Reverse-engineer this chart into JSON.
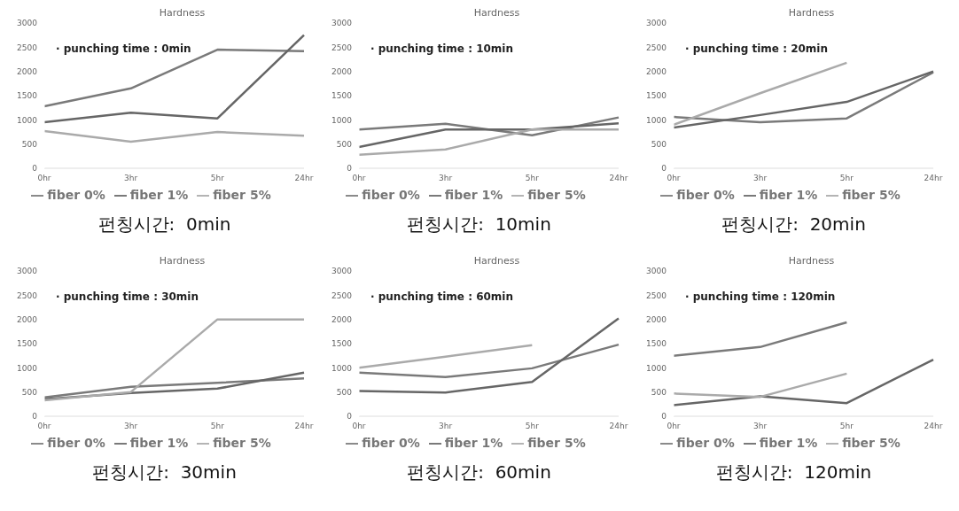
{
  "chart_data": [
    {
      "type": "line",
      "title": "Hardness",
      "categories": [
        "0hr",
        "3hr",
        "5hr",
        "24hr"
      ],
      "ylim": [
        0,
        3000
      ],
      "yticks": [
        0,
        500,
        1000,
        1500,
        2000,
        2500,
        3000
      ],
      "grid": false,
      "legend": "bottom",
      "marker": "none",
      "annotations": [
        "· punching time : 0min",
        "펀칭시간:  0min"
      ],
      "series": [
        {
          "name": "fiber 0%",
          "color": "#7a7a7a",
          "values": [
            1280,
            1650,
            2450,
            2420
          ]
        },
        {
          "name": "fiber 1%",
          "color": "#666666",
          "values": [
            950,
            1150,
            1030,
            2750
          ]
        },
        {
          "name": "fiber 5%",
          "color": "#aaaaaa",
          "values": [
            770,
            550,
            750,
            670
          ]
        }
      ]
    },
    {
      "type": "line",
      "title": "Hardness",
      "categories": [
        "0hr",
        "3hr",
        "5hr",
        "24hr"
      ],
      "ylim": [
        0,
        3000
      ],
      "yticks": [
        0,
        500,
        1000,
        1500,
        2000,
        2500,
        3000
      ],
      "grid": false,
      "legend": "bottom",
      "marker": "none",
      "annotations": [
        "· punching time : 10min",
        "펀칭시간:  10min"
      ],
      "series": [
        {
          "name": "fiber 0%",
          "color": "#7a7a7a",
          "values": [
            800,
            920,
            680,
            1050
          ]
        },
        {
          "name": "fiber 1%",
          "color": "#666666",
          "values": [
            440,
            800,
            800,
            930
          ]
        },
        {
          "name": "fiber 5%",
          "color": "#aaaaaa",
          "values": [
            280,
            390,
            800,
            800
          ]
        }
      ]
    },
    {
      "type": "line",
      "title": "Hardness",
      "categories": [
        "0hr",
        "3hr",
        "5hr",
        "24hr"
      ],
      "ylim": [
        0,
        3000
      ],
      "yticks": [
        0,
        500,
        1000,
        1500,
        2000,
        2500,
        3000
      ],
      "grid": false,
      "legend": "bottom",
      "marker": "none",
      "annotations": [
        "· punching time : 20min",
        "펀칭시간:  20min"
      ],
      "series": [
        {
          "name": "fiber 0%",
          "color": "#7a7a7a",
          "values": [
            1060,
            950,
            1030,
            1980
          ]
        },
        {
          "name": "fiber 1%",
          "color": "#666666",
          "values": [
            840,
            1100,
            1370,
            2000
          ]
        },
        {
          "name": "fiber 5%",
          "color": "#aaaaaa",
          "values": [
            900,
            1550,
            2180,
            null
          ]
        }
      ]
    },
    {
      "type": "line",
      "title": "Hardness",
      "categories": [
        "0hr",
        "3hr",
        "5hr",
        "24hr"
      ],
      "ylim": [
        0,
        3000
      ],
      "yticks": [
        0,
        500,
        1000,
        1500,
        2000,
        2500,
        3000
      ],
      "grid": false,
      "legend": "bottom",
      "marker": "none",
      "annotations": [
        "· punching time : 30min",
        "펀칭시간:  30min"
      ],
      "series": [
        {
          "name": "fiber 0%",
          "color": "#7a7a7a",
          "values": [
            390,
            610,
            690,
            780
          ]
        },
        {
          "name": "fiber 1%",
          "color": "#666666",
          "values": [
            350,
            480,
            570,
            900
          ]
        },
        {
          "name": "fiber 5%",
          "color": "#aaaaaa",
          "values": [
            330,
            500,
            2000,
            2000
          ]
        }
      ]
    },
    {
      "type": "line",
      "title": "Hardness",
      "categories": [
        "0hr",
        "3hr",
        "5hr",
        "24hr"
      ],
      "ylim": [
        0,
        3000
      ],
      "yticks": [
        0,
        500,
        1000,
        1500,
        2000,
        2500,
        3000
      ],
      "grid": false,
      "legend": "bottom",
      "marker": "none",
      "annotations": [
        "· punching time : 60min",
        "펀칭시간:  60min"
      ],
      "series": [
        {
          "name": "fiber 0%",
          "color": "#7a7a7a",
          "values": [
            900,
            810,
            990,
            1480
          ]
        },
        {
          "name": "fiber 1%",
          "color": "#666666",
          "values": [
            520,
            490,
            710,
            2020
          ]
        },
        {
          "name": "fiber 5%",
          "color": "#aaaaaa",
          "values": [
            1000,
            1230,
            1470,
            null
          ]
        }
      ]
    },
    {
      "type": "line",
      "title": "Hardness",
      "categories": [
        "0hr",
        "3hr",
        "5hr",
        "24hr"
      ],
      "ylim": [
        0,
        3000
      ],
      "yticks": [
        0,
        500,
        1000,
        1500,
        2000,
        2500,
        3000
      ],
      "grid": false,
      "legend": "bottom",
      "marker": "none",
      "annotations": [
        "· punching time : 120min",
        "펀칭시간:  120min"
      ],
      "series": [
        {
          "name": "fiber 0%",
          "color": "#7a7a7a",
          "values": [
            1250,
            1430,
            1940,
            null
          ]
        },
        {
          "name": "fiber 1%",
          "color": "#666666",
          "values": [
            230,
            410,
            270,
            1170
          ]
        },
        {
          "name": "fiber 5%",
          "color": "#aaaaaa",
          "values": [
            470,
            400,
            880,
            null
          ]
        }
      ]
    }
  ]
}
